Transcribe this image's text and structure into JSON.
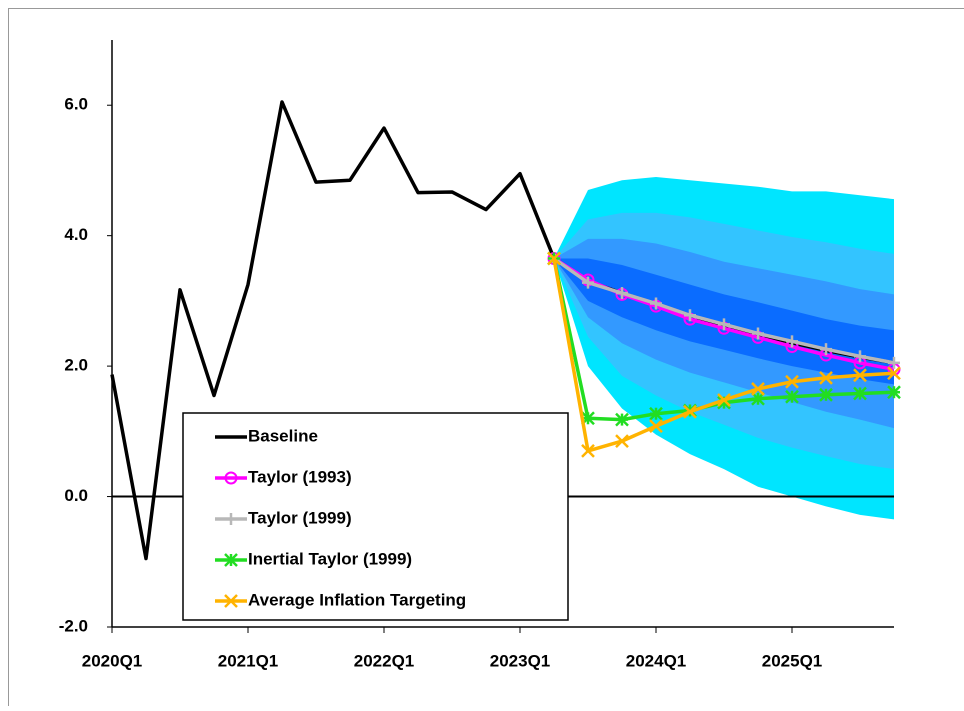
{
  "chart_data": {
    "type": "fan-line",
    "categories": [
      "2020Q1",
      null,
      null,
      null,
      "2021Q1",
      null,
      null,
      null,
      "2022Q1",
      null,
      null,
      null,
      "2023Q1",
      null,
      null,
      null,
      "2024Q1",
      null,
      null,
      null,
      "2025Q1",
      null,
      null,
      null
    ],
    "ylim": [
      -2,
      7
    ],
    "yticks": [
      {
        "value": -2,
        "label": "-2.0"
      },
      {
        "value": 0,
        "label": "0.0"
      },
      {
        "value": 2,
        "label": "2.0"
      },
      {
        "value": 4,
        "label": "4.0"
      },
      {
        "value": 6,
        "label": "6.0"
      }
    ],
    "zero_line": true,
    "legend": "lower left",
    "bands": [
      {
        "color": "#00e5ff",
        "upper": [
          null,
          null,
          null,
          null,
          null,
          null,
          null,
          null,
          null,
          null,
          null,
          null,
          null,
          3.65,
          4.7,
          4.85,
          4.9,
          4.85,
          4.8,
          4.75,
          4.68,
          4.68,
          4.62,
          4.56
        ],
        "lower": [
          null,
          null,
          null,
          null,
          null,
          null,
          null,
          null,
          null,
          null,
          null,
          null,
          null,
          3.65,
          2.0,
          1.35,
          0.95,
          0.65,
          0.42,
          0.15,
          0.0,
          -0.15,
          -0.28,
          -0.35
        ]
      },
      {
        "color": "#33c4ff",
        "upper": [
          null,
          null,
          null,
          null,
          null,
          null,
          null,
          null,
          null,
          null,
          null,
          null,
          null,
          3.65,
          4.25,
          4.35,
          4.35,
          4.28,
          4.18,
          4.08,
          3.98,
          3.9,
          3.8,
          3.72
        ],
        "lower": [
          null,
          null,
          null,
          null,
          null,
          null,
          null,
          null,
          null,
          null,
          null,
          null,
          null,
          3.65,
          2.45,
          1.85,
          1.55,
          1.3,
          1.1,
          0.9,
          0.75,
          0.62,
          0.5,
          0.42
        ]
      },
      {
        "color": "#3399ff",
        "upper": [
          null,
          null,
          null,
          null,
          null,
          null,
          null,
          null,
          null,
          null,
          null,
          null,
          null,
          3.65,
          3.95,
          3.95,
          3.88,
          3.75,
          3.6,
          3.5,
          3.4,
          3.3,
          3.18,
          3.1
        ],
        "lower": [
          null,
          null,
          null,
          null,
          null,
          null,
          null,
          null,
          null,
          null,
          null,
          null,
          null,
          3.65,
          2.75,
          2.35,
          2.1,
          1.9,
          1.75,
          1.6,
          1.45,
          1.3,
          1.18,
          1.05
        ]
      },
      {
        "color": "#0a6cff",
        "upper": [
          null,
          null,
          null,
          null,
          null,
          null,
          null,
          null,
          null,
          null,
          null,
          null,
          null,
          3.65,
          3.65,
          3.55,
          3.4,
          3.25,
          3.1,
          2.98,
          2.85,
          2.72,
          2.62,
          2.55
        ],
        "lower": [
          null,
          null,
          null,
          null,
          null,
          null,
          null,
          null,
          null,
          null,
          null,
          null,
          null,
          3.65,
          3.0,
          2.75,
          2.55,
          2.38,
          2.25,
          2.12,
          2.0,
          1.9,
          1.8,
          1.72
        ]
      }
    ],
    "series": [
      {
        "name": "Baseline",
        "color": "#000000",
        "marker": "none",
        "values": [
          1.87,
          -0.95,
          3.17,
          1.55,
          3.25,
          6.05,
          4.82,
          4.85,
          5.65,
          4.66,
          4.67,
          4.4,
          4.95,
          3.65,
          3.3,
          3.12,
          2.95,
          2.78,
          2.62,
          2.48,
          2.36,
          2.24,
          2.14,
          2.05
        ]
      },
      {
        "name": "Taylor (1993)",
        "color": "#ff00ff",
        "marker": "circle",
        "values": [
          null,
          null,
          null,
          null,
          null,
          null,
          null,
          null,
          null,
          null,
          null,
          null,
          null,
          3.65,
          3.32,
          3.1,
          2.92,
          2.72,
          2.58,
          2.44,
          2.3,
          2.17,
          2.05,
          1.95
        ]
      },
      {
        "name": "Taylor (1999)",
        "color": "#b8b8b8",
        "marker": "plus",
        "values": [
          null,
          null,
          null,
          null,
          null,
          null,
          null,
          null,
          null,
          null,
          null,
          null,
          null,
          3.65,
          3.28,
          3.12,
          2.96,
          2.78,
          2.64,
          2.5,
          2.38,
          2.26,
          2.15,
          2.05
        ]
      },
      {
        "name": "Inertial Taylor (1999)",
        "color": "#22dd22",
        "marker": "star",
        "values": [
          null,
          null,
          null,
          null,
          null,
          null,
          null,
          null,
          null,
          null,
          null,
          null,
          null,
          3.65,
          1.2,
          1.18,
          1.27,
          1.32,
          1.44,
          1.5,
          1.53,
          1.56,
          1.58,
          1.6
        ]
      },
      {
        "name": "Average Inflation Targeting",
        "color": "#ffb300",
        "marker": "cross",
        "values": [
          null,
          null,
          null,
          null,
          null,
          null,
          null,
          null,
          null,
          null,
          null,
          null,
          null,
          3.65,
          0.7,
          0.85,
          1.08,
          1.3,
          1.48,
          1.65,
          1.76,
          1.82,
          1.86,
          1.89
        ]
      }
    ]
  }
}
